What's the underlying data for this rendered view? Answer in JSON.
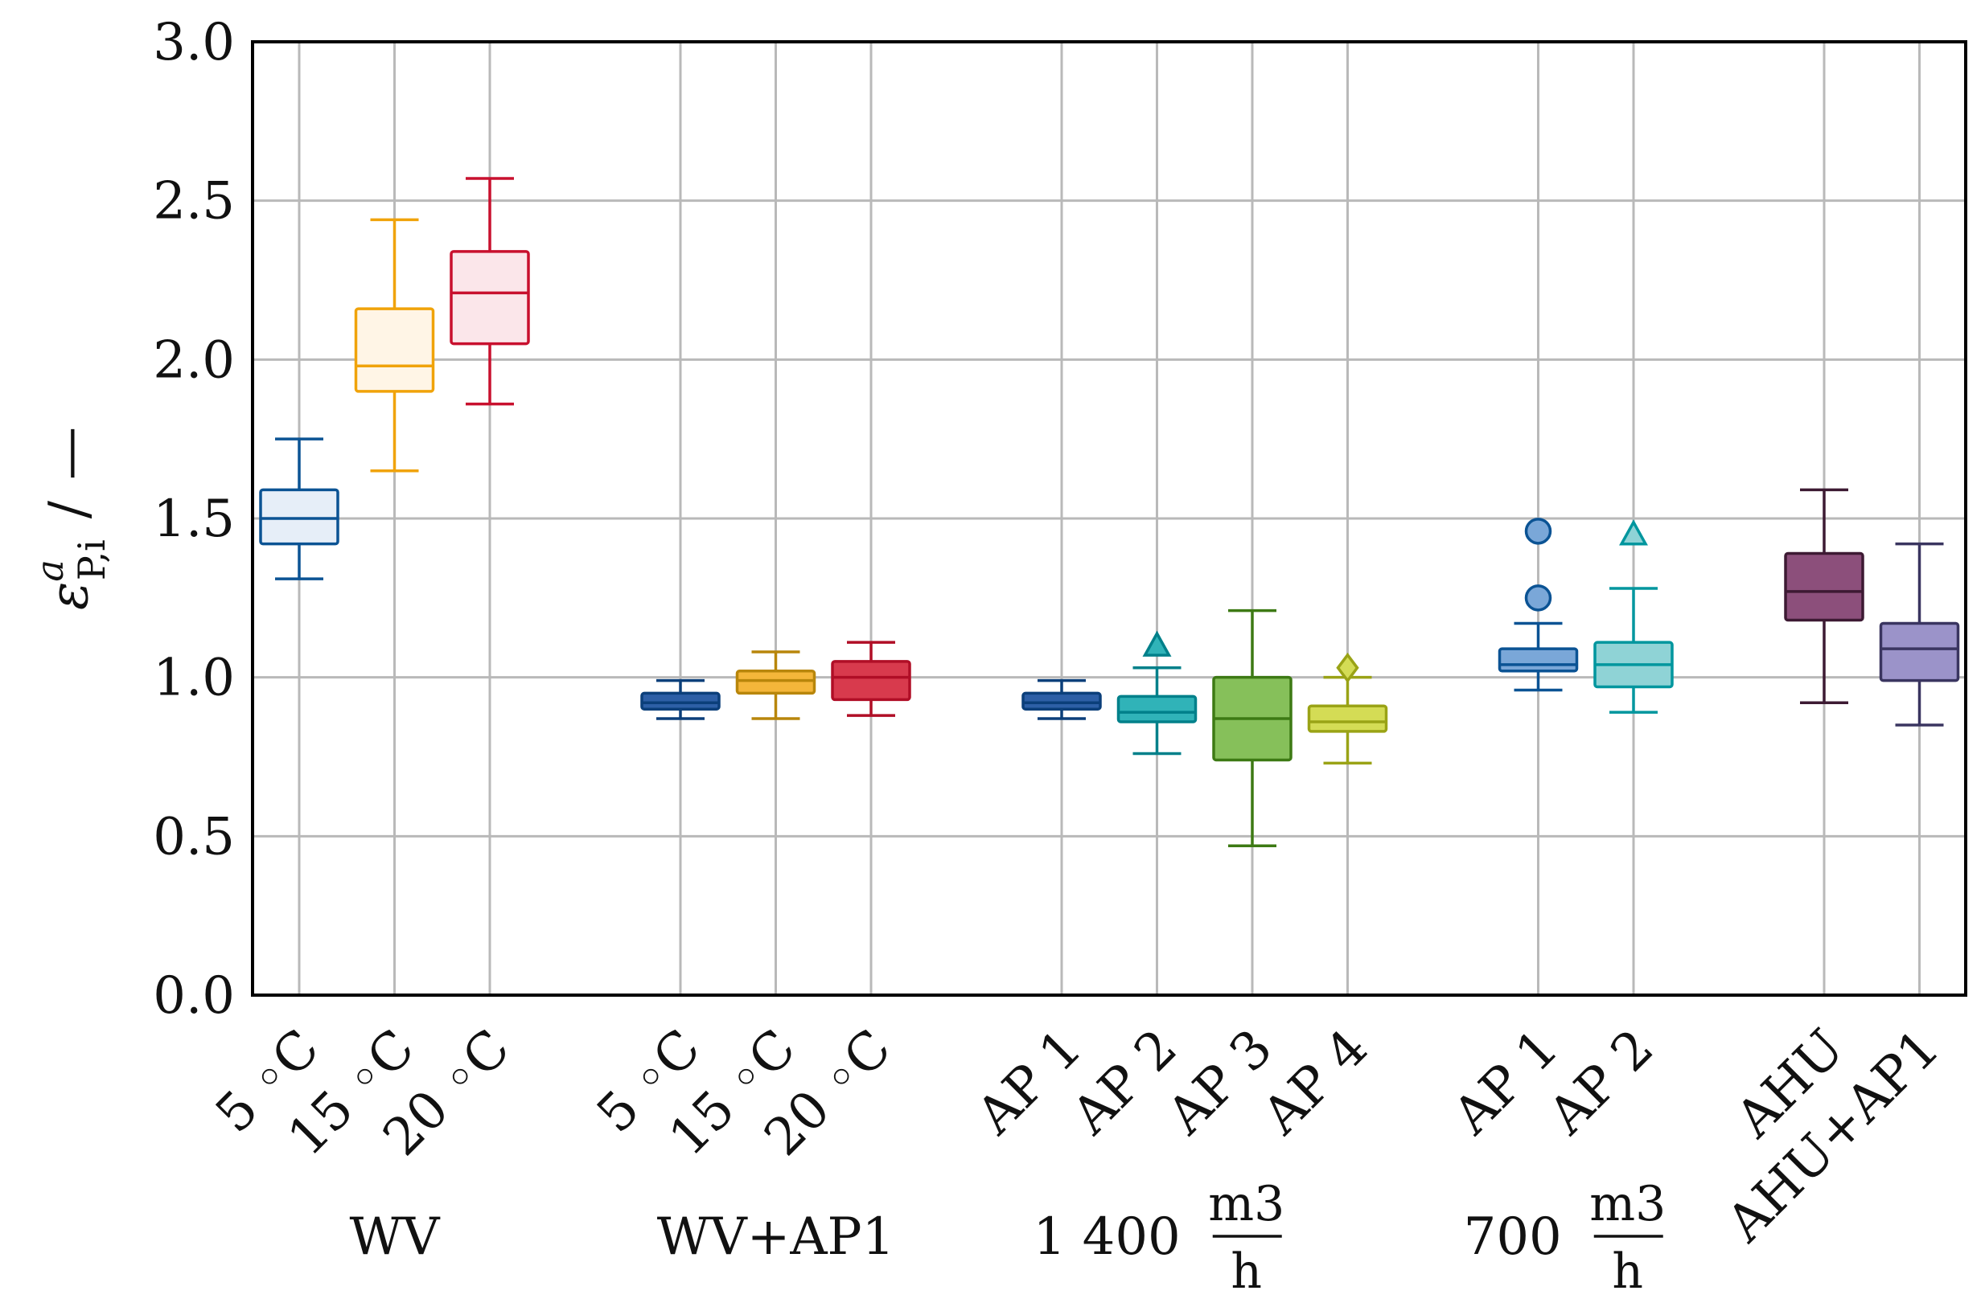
{
  "chart_data": {
    "type": "box",
    "title": "",
    "xlabel": "",
    "ylabel": {
      "symbol": "ε",
      "superscript": "a",
      "subscript": "P,i",
      "unit_sep": "/",
      "unit": "—"
    },
    "ylim": [
      0.0,
      3.0
    ],
    "yticks": [
      "0.0",
      "0.5",
      "1.0",
      "1.5",
      "2.0",
      "2.5",
      "3.0"
    ],
    "grid": true,
    "groups": [
      {
        "label": "WV",
        "boxes": [
          {
            "label": "5 ◦C",
            "color": "#0b5394",
            "fill": "#e6eef8",
            "whisker_low": 1.31,
            "q1": 1.42,
            "median": 1.5,
            "q3": 1.59,
            "whisker_high": 1.75,
            "outliers": [],
            "marker": "circle"
          },
          {
            "label": "15 ◦C",
            "color": "#f0a30a",
            "fill": "#fff5e6",
            "whisker_low": 1.65,
            "q1": 1.9,
            "median": 1.98,
            "q3": 2.16,
            "whisker_high": 2.44,
            "outliers": [],
            "marker": "circle"
          },
          {
            "label": "20 ◦C",
            "color": "#c8102e",
            "fill": "#fbe6ea",
            "whisker_low": 1.86,
            "q1": 2.05,
            "median": 2.21,
            "q3": 2.34,
            "whisker_high": 2.57,
            "outliers": [],
            "marker": "circle"
          }
        ]
      },
      {
        "label": "WV+AP1",
        "boxes": [
          {
            "label": "5 ◦C",
            "color": "#0b3f7a",
            "fill": "#2d5fa6",
            "whisker_low": 0.87,
            "q1": 0.9,
            "median": 0.92,
            "q3": 0.95,
            "whisker_high": 0.99,
            "outliers": [],
            "marker": "circle"
          },
          {
            "label": "15 ◦C",
            "color": "#b8860b",
            "fill": "#f4b63a",
            "whisker_low": 0.87,
            "q1": 0.95,
            "median": 0.99,
            "q3": 1.02,
            "whisker_high": 1.08,
            "outliers": [],
            "marker": "circle"
          },
          {
            "label": "20 ◦C",
            "color": "#b00e26",
            "fill": "#d83a4d",
            "whisker_low": 0.88,
            "q1": 0.93,
            "median": 1.0,
            "q3": 1.05,
            "whisker_high": 1.11,
            "outliers": [],
            "marker": "circle"
          }
        ]
      },
      {
        "label": "1 400",
        "unit_num": "m3",
        "unit_den": "h",
        "boxes": [
          {
            "label": "AP 1",
            "color": "#0b3f7a",
            "fill": "#2d5fa6",
            "whisker_low": 0.87,
            "q1": 0.9,
            "median": 0.92,
            "q3": 0.95,
            "whisker_high": 0.99,
            "outliers": [],
            "marker": "circle"
          },
          {
            "label": "AP 2",
            "color": "#00808a",
            "fill": "#30b3b8",
            "whisker_low": 0.76,
            "q1": 0.86,
            "median": 0.89,
            "q3": 0.94,
            "whisker_high": 1.03,
            "outliers": [
              1.1
            ],
            "marker": "triangle"
          },
          {
            "label": "AP 3",
            "color": "#3d7a14",
            "fill": "#86c05a",
            "whisker_low": 0.47,
            "q1": 0.74,
            "median": 0.87,
            "q3": 1.0,
            "whisker_high": 1.21,
            "outliers": [],
            "marker": "circle"
          },
          {
            "label": "AP 4",
            "color": "#9aa316",
            "fill": "#d4dc55",
            "whisker_low": 0.73,
            "q1": 0.83,
            "median": 0.86,
            "q3": 0.91,
            "whisker_high": 1.0,
            "outliers": [
              1.03
            ],
            "marker": "diamond"
          }
        ]
      },
      {
        "label": "700",
        "unit_num": "m3",
        "unit_den": "h",
        "boxes": [
          {
            "label": "AP 1",
            "color": "#0b5394",
            "fill": "#7aa7d8",
            "whisker_low": 0.96,
            "q1": 1.02,
            "median": 1.04,
            "q3": 1.09,
            "whisker_high": 1.17,
            "outliers": [
              1.25,
              1.46
            ],
            "marker": "circle"
          },
          {
            "label": "AP 2",
            "color": "#00969e",
            "fill": "#8fd3d6",
            "whisker_low": 0.89,
            "q1": 0.97,
            "median": 1.04,
            "q3": 1.11,
            "whisker_high": 1.28,
            "outliers": [
              1.45
            ],
            "marker": "triangle"
          }
        ]
      },
      {
        "label": "",
        "boxes": [
          {
            "label": "AHU",
            "color": "#3d1a33",
            "fill": "#8c4f7b",
            "whisker_low": 0.92,
            "q1": 1.18,
            "median": 1.27,
            "q3": 1.39,
            "whisker_high": 1.59,
            "outliers": [],
            "marker": "circle"
          },
          {
            "label": "AHU+AP1",
            "color": "#3a3560",
            "fill": "#9b93c9",
            "whisker_low": 0.85,
            "q1": 0.99,
            "median": 1.09,
            "q3": 1.17,
            "whisker_high": 1.42,
            "outliers": [],
            "marker": "circle"
          }
        ]
      }
    ]
  }
}
